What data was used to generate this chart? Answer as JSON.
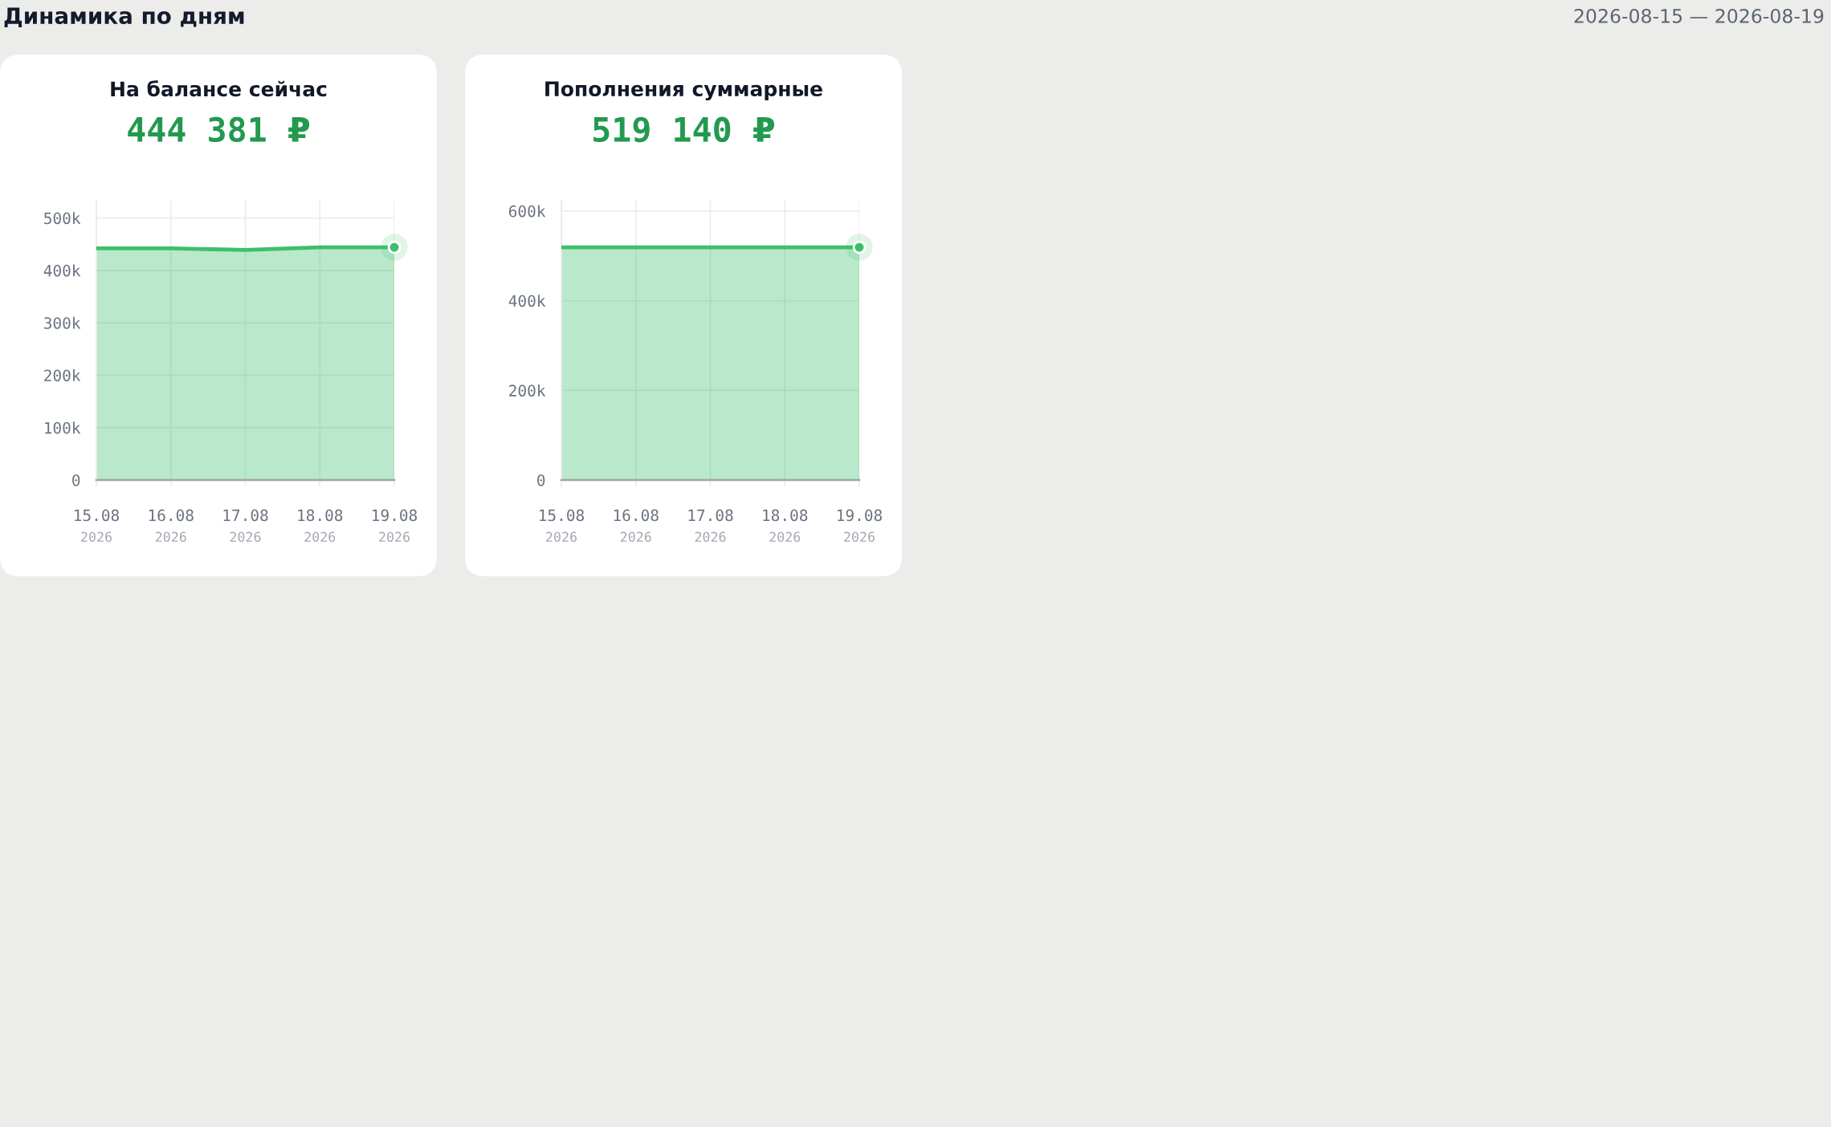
{
  "chart_data": [
    {
      "type": "area",
      "title": "На балансе сейчас",
      "subtitle": "444 381 ₽",
      "annotations": [
        "Динамика по дням",
        "2026-08-15 — 2026-08-19"
      ],
      "categories": [
        "15.08\n2026",
        "16.08\n2026",
        "17.08\n2026",
        "18.08\n2026",
        "19.08\n2026"
      ],
      "series": [
        {
          "color": "#3cbf6b",
          "values": [
            442000,
            442000,
            439000,
            444000,
            444000
          ]
        },
        {
          "type": "scatter",
          "color": "#3cbf6b",
          "marker": "circle",
          "values": [
            null,
            null,
            null,
            null,
            444000
          ]
        }
      ],
      "ylim": [
        0,
        533000
      ],
      "yticks": [
        0,
        {
          "value": 100000,
          "label": "100k"
        },
        {
          "value": 200000,
          "label": "200k"
        },
        {
          "value": 300000,
          "label": "300k"
        },
        {
          "value": 400000,
          "label": "400k"
        },
        {
          "value": 500000,
          "label": "500k"
        }
      ],
      "grid": true
    },
    {
      "type": "area",
      "title": "Пополнения суммарные",
      "subtitle": "519 140 ₽",
      "categories": [
        "15.08\n2026",
        "16.08\n2026",
        "17.08\n2026",
        "18.08\n2026",
        "19.08\n2026"
      ],
      "series": [
        {
          "color": "#3cbf6b",
          "values": [
            519000,
            519000,
            519000,
            519000,
            519000
          ]
        },
        {
          "type": "scatter",
          "color": "#3cbf6b",
          "marker": "circle",
          "values": [
            null,
            null,
            null,
            null,
            519000
          ]
        }
      ],
      "ylim": [
        0,
        623000
      ],
      "yticks": [
        0,
        {
          "value": 200000,
          "label": "200k"
        },
        {
          "value": 400000,
          "label": "400k"
        },
        {
          "value": 600000,
          "label": "600k"
        }
      ],
      "grid": true
    }
  ]
}
